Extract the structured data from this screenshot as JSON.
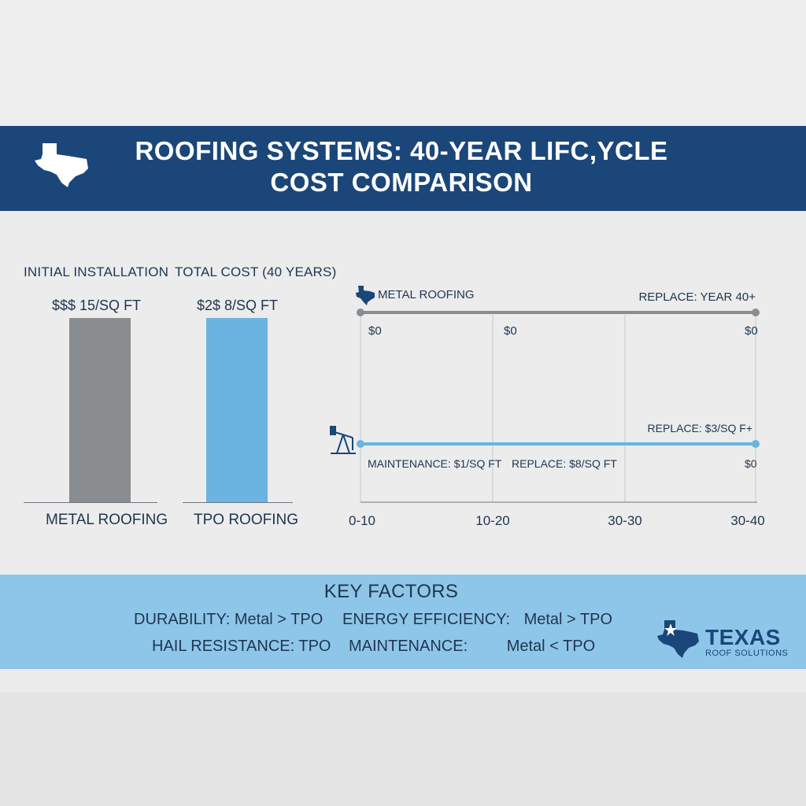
{
  "header": {
    "title_line1": "ROOFING SYSTEMS: 40-YEAR LIFC,YCLE",
    "title_line2": "COST COMPARISON",
    "icon": "texas-state-icon",
    "color": "#1b4679"
  },
  "bar_panel": {
    "label_initial": "INITIAL INSTALLATION",
    "label_total": "TOTAL COST (40 YEARS)"
  },
  "chart_data": [
    {
      "type": "bar",
      "categories": [
        "METAL ROOFING",
        "TPO ROOFING"
      ],
      "value_labels": [
        "$$$ 15/SQ FT",
        "$2$ 8/SQ FT"
      ],
      "colors": [
        "#8a8d90",
        "#6bb3e0"
      ]
    },
    {
      "type": "line",
      "x_ticks": [
        "0-10",
        "10-20",
        "30-30",
        "30-40"
      ],
      "series": [
        {
          "name": "METAL ROOFING",
          "icon": "texas-state-icon",
          "color": "#8a8d90",
          "end_label": "REPLACE: YEAR 40+",
          "labels": [
            "$0",
            "$0",
            "$0"
          ]
        },
        {
          "name": "",
          "icon": "oil-pumpjack-icon",
          "color": "#6bb3e0",
          "end_label": "REPLACE: $3/SQ F+",
          "labels": [
            "MAINTENANCE: $1/SQ FT",
            "REPLACE: $8/SQ FT",
            "$0"
          ]
        }
      ]
    }
  ],
  "key_factors": {
    "title": "KEY FACTORS",
    "items": [
      {
        "label": "DURABILITY:",
        "value": "Metal > TPO"
      },
      {
        "label": "ENERGY EFFICIENCY:",
        "value": "Metal > TPO"
      },
      {
        "label": "HAIL RESISTANCE:",
        "value": "TPO"
      },
      {
        "label": "MAINTENANCE:",
        "value": "Metal < TPO"
      }
    ]
  },
  "logo": {
    "main": "TEXAS",
    "sub": "ROOF SOLUTIONS",
    "icon": "texas-star-icon"
  }
}
